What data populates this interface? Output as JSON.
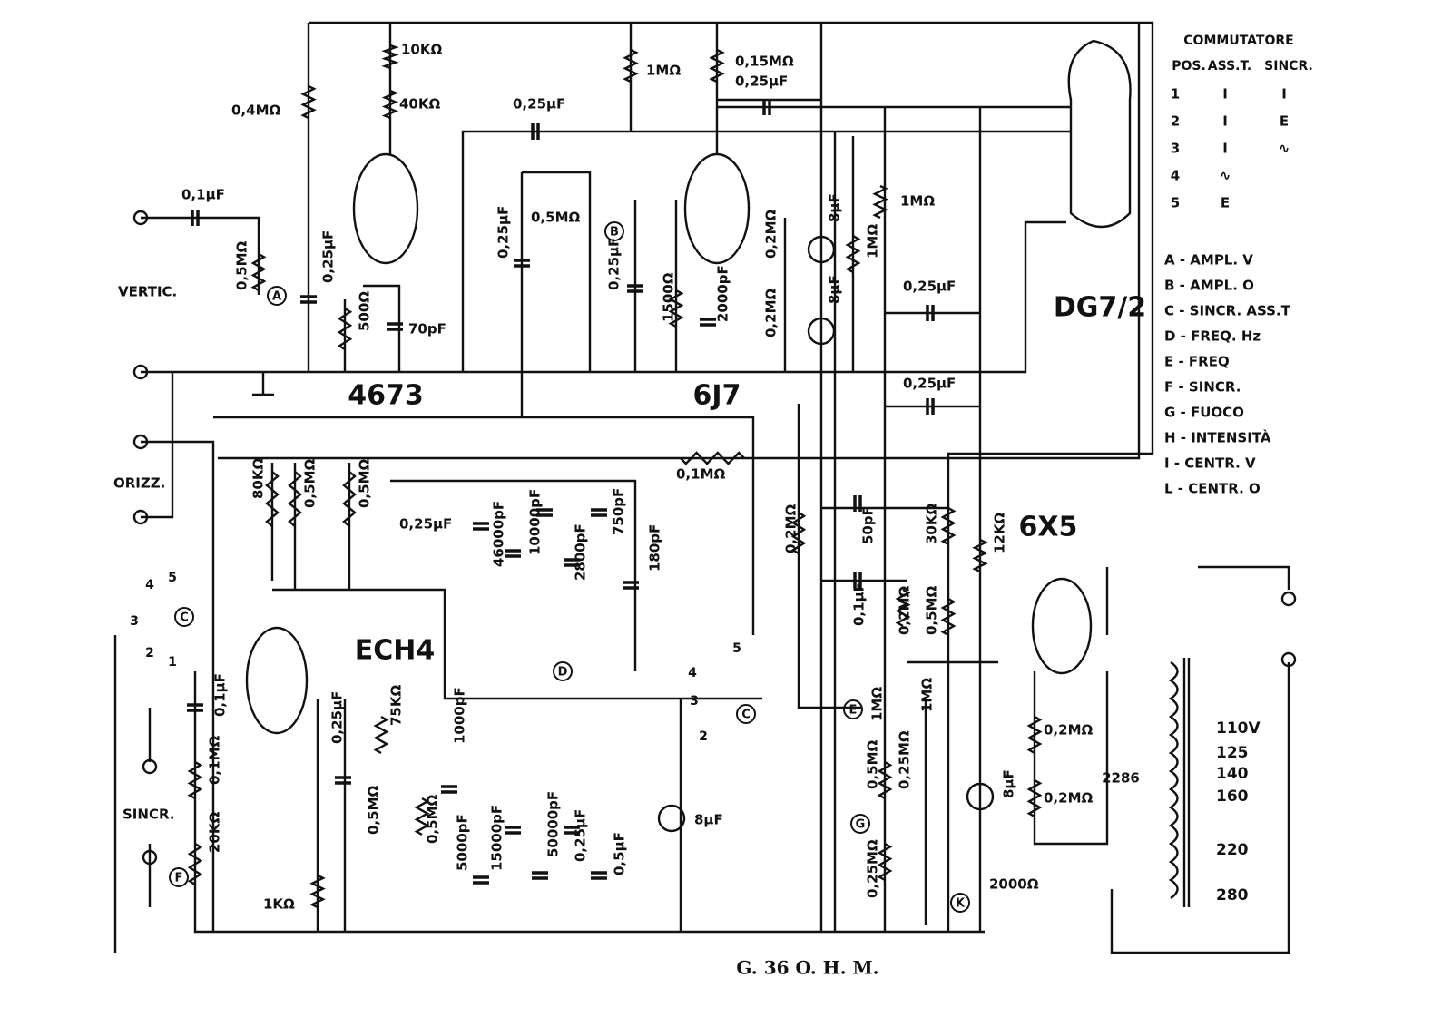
{
  "title": "G. 36 O. H. M.",
  "tubes": [
    "4673",
    "6J7",
    "ECH4",
    "6X5",
    "DG7/2"
  ],
  "terminals": [
    "VERTIC.",
    "ORIZZ.",
    "SINCR."
  ],
  "commutatore": {
    "title": "COMMUTATORE",
    "header": [
      "POS.",
      "ASS.T.",
      "SINCR."
    ],
    "rows": [
      [
        "1",
        "I",
        "I"
      ],
      [
        "2",
        "I",
        "E"
      ],
      [
        "3",
        "I",
        "∿"
      ],
      [
        "4",
        "∿"
      ],
      [
        "5",
        "E"
      ]
    ]
  },
  "legend": [
    "A - AMPL. V",
    "B - AMPL. O",
    "C - SINCR. ASS.T",
    "D - FREQ. Hz",
    "E - FREQ",
    "F - SINCR.",
    "G - FUOCO",
    "H - INTENSITÀ",
    "I - CENTR. V",
    "L - CENTR. O"
  ],
  "markers": [
    "A",
    "B",
    "C",
    "D",
    "E",
    "F",
    "G",
    "K",
    "C"
  ],
  "switch_positions": [
    "1",
    "2",
    "3",
    "4",
    "5",
    "2",
    "3",
    "4",
    "5"
  ],
  "transformer": {
    "label": "2286",
    "taps": [
      "110V",
      "125",
      "140",
      "160",
      "220",
      "280"
    ]
  },
  "components": [
    "10KΩ",
    "0,4MΩ",
    "40KΩ",
    "0,25μF",
    "1MΩ",
    "0,15MΩ",
    "0,25μF",
    "0,1μF",
    "0,5MΩ",
    "0,25μF",
    "8μF",
    "1MΩ",
    "0,2MΩ",
    "1MΩ",
    "0,5MΩ",
    "0,25μF",
    "500Ω",
    "70pF",
    "0,25μF",
    "1500Ω",
    "2000pF",
    "8μF",
    "0,2MΩ",
    "0,25μF",
    "0,25μF",
    "80KΩ",
    "0,5MΩ",
    "0,5MΩ",
    "0,1MΩ",
    "0,25μF",
    "46000pF",
    "10000pF",
    "2800pF",
    "750pF",
    "180pF",
    "0,2MΩ",
    "50pF",
    "30KΩ",
    "12KΩ",
    "0,1μF",
    "0,2MΩ",
    "0,5MΩ",
    "1MΩ",
    "1MΩ",
    "0,1μF",
    "0,25μF",
    "75KΩ",
    "1000pF",
    "0,1MΩ",
    "20KΩ",
    "0,5MΩ",
    "0,5MΩ",
    "8μF",
    "0,5MΩ",
    "0,25MΩ",
    "0,2MΩ",
    "0,2MΩ",
    "8μF",
    "5000pF",
    "15000pF",
    "50000pF",
    "0,25μF",
    "0,5μF",
    "1KΩ",
    "0,25MΩ",
    "2000Ω"
  ]
}
